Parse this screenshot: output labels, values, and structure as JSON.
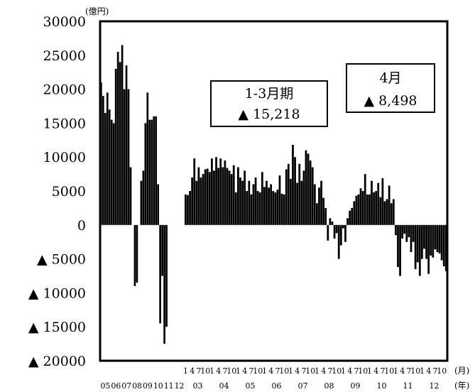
{
  "chart_data": {
    "type": "bar",
    "ylabel": "(億円)",
    "ylim": [
      -20000,
      30000
    ],
    "y_ticks": [
      {
        "value": 30000,
        "label": "30000"
      },
      {
        "value": 25000,
        "label": "25000"
      },
      {
        "value": 20000,
        "label": "20000"
      },
      {
        "value": 15000,
        "label": "15000"
      },
      {
        "value": 10000,
        "label": "10000"
      },
      {
        "value": 5000,
        "label": "5000"
      },
      {
        "value": 0,
        "label": "0"
      },
      {
        "value": -5000,
        "label": "▲  5000"
      },
      {
        "value": -10000,
        "label": "▲  10000"
      },
      {
        "value": -15000,
        "label": "▲  15000"
      },
      {
        "value": -20000,
        "label": "▲  20000"
      }
    ],
    "month_unit": "(月)",
    "year_unit": "(年)",
    "month_ticks": [
      "1",
      "4",
      "7",
      "10"
    ],
    "early_years": {
      "labels": [
        "05",
        "06",
        "07",
        "08",
        "09",
        "10",
        "11",
        "12"
      ],
      "values": [
        21000,
        19000,
        16500,
        19500,
        17000,
        15500,
        15000,
        23000,
        25500,
        24000,
        26500,
        20000,
        23500,
        20000,
        8500,
        0,
        -9000,
        -8500,
        0,
        6500,
        8000,
        15000,
        19500,
        15500,
        15500,
        16000,
        16000,
        6000,
        -14500,
        -7500,
        -17500,
        -15000,
        0,
        0,
        0,
        0,
        0,
        0,
        0,
        0
      ]
    },
    "monthly": {
      "year_labels": [
        "03",
        "04",
        "05",
        "06",
        "07",
        "08",
        "09",
        "10",
        "11",
        "12"
      ],
      "values": [
        4500,
        4400,
        5000,
        7000,
        9800,
        6500,
        8500,
        7000,
        7500,
        8200,
        8300,
        7800,
        9800,
        8000,
        10000,
        8400,
        9800,
        8500,
        9500,
        8400,
        8000,
        7500,
        8800,
        4800,
        8500,
        7000,
        6500,
        8000,
        5000,
        6500,
        4500,
        6000,
        7000,
        5000,
        4800,
        7800,
        5600,
        6500,
        5500,
        6000,
        5000,
        4800,
        5200,
        7300,
        4600,
        4500,
        8200,
        9000,
        6800,
        11800,
        10000,
        6200,
        9000,
        6500,
        8000,
        11000,
        10500,
        9500,
        8500,
        6000,
        3200,
        5500,
        6500,
        4000,
        2500,
        -2300,
        1000,
        500,
        -2000,
        -1200,
        -5000,
        -3000,
        -500,
        -2500,
        1000,
        2100,
        2500,
        3500,
        4300,
        4500,
        5400,
        5000,
        7500,
        4500,
        4500,
        6500,
        4800,
        5000,
        6200,
        4100,
        6900,
        3500,
        3800,
        5800,
        3200,
        3800,
        -1500,
        -6200,
        -7500,
        -2000,
        -1300,
        -2500,
        -1800,
        -4000,
        -2500,
        -6500,
        -5500,
        -7500,
        -5000,
        -3500,
        -5000,
        -7200,
        -4500,
        -4800,
        -3600,
        -4000,
        -4200,
        -5200,
        -6100,
        -6800
      ]
    },
    "annotations": [
      {
        "title": "1-3月期",
        "value": "▲  15,218"
      },
      {
        "title": "4月",
        "value": "▲  8,498"
      }
    ]
  }
}
